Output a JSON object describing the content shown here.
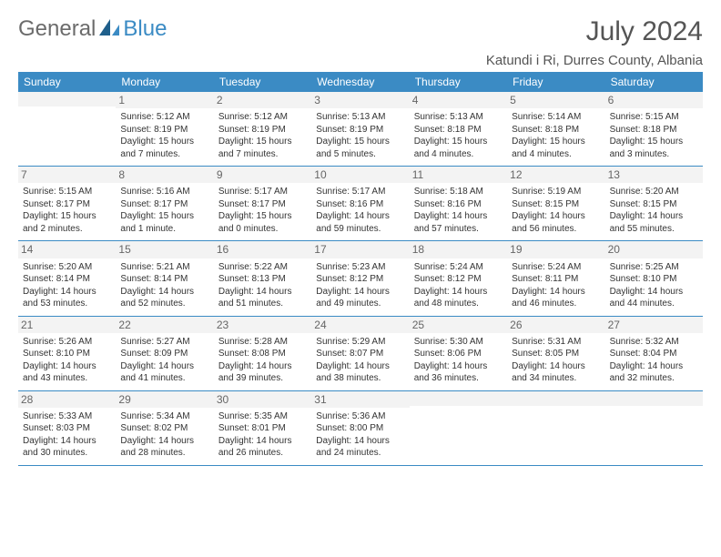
{
  "logo": {
    "general": "General",
    "blue": "Blue"
  },
  "title": "July 2024",
  "location": "Katundi i Ri, Durres County, Albania",
  "weekdays": [
    "Sunday",
    "Monday",
    "Tuesday",
    "Wednesday",
    "Thursday",
    "Friday",
    "Saturday"
  ],
  "colors": {
    "header_bg": "#3b8bc4",
    "header_text": "#ffffff",
    "daynum_bg": "#f3f3f3",
    "text": "#333333"
  },
  "fonts": {
    "title_size": 30,
    "location_size": 15,
    "weekday_size": 12,
    "daynum_size": 12,
    "body_size": 10
  },
  "weeks": [
    [
      null,
      {
        "n": "1",
        "sr": "Sunrise: 5:12 AM",
        "ss": "Sunset: 8:19 PM",
        "d1": "Daylight: 15 hours",
        "d2": "and 7 minutes."
      },
      {
        "n": "2",
        "sr": "Sunrise: 5:12 AM",
        "ss": "Sunset: 8:19 PM",
        "d1": "Daylight: 15 hours",
        "d2": "and 7 minutes."
      },
      {
        "n": "3",
        "sr": "Sunrise: 5:13 AM",
        "ss": "Sunset: 8:19 PM",
        "d1": "Daylight: 15 hours",
        "d2": "and 5 minutes."
      },
      {
        "n": "4",
        "sr": "Sunrise: 5:13 AM",
        "ss": "Sunset: 8:18 PM",
        "d1": "Daylight: 15 hours",
        "d2": "and 4 minutes."
      },
      {
        "n": "5",
        "sr": "Sunrise: 5:14 AM",
        "ss": "Sunset: 8:18 PM",
        "d1": "Daylight: 15 hours",
        "d2": "and 4 minutes."
      },
      {
        "n": "6",
        "sr": "Sunrise: 5:15 AM",
        "ss": "Sunset: 8:18 PM",
        "d1": "Daylight: 15 hours",
        "d2": "and 3 minutes."
      }
    ],
    [
      {
        "n": "7",
        "sr": "Sunrise: 5:15 AM",
        "ss": "Sunset: 8:17 PM",
        "d1": "Daylight: 15 hours",
        "d2": "and 2 minutes."
      },
      {
        "n": "8",
        "sr": "Sunrise: 5:16 AM",
        "ss": "Sunset: 8:17 PM",
        "d1": "Daylight: 15 hours",
        "d2": "and 1 minute."
      },
      {
        "n": "9",
        "sr": "Sunrise: 5:17 AM",
        "ss": "Sunset: 8:17 PM",
        "d1": "Daylight: 15 hours",
        "d2": "and 0 minutes."
      },
      {
        "n": "10",
        "sr": "Sunrise: 5:17 AM",
        "ss": "Sunset: 8:16 PM",
        "d1": "Daylight: 14 hours",
        "d2": "and 59 minutes."
      },
      {
        "n": "11",
        "sr": "Sunrise: 5:18 AM",
        "ss": "Sunset: 8:16 PM",
        "d1": "Daylight: 14 hours",
        "d2": "and 57 minutes."
      },
      {
        "n": "12",
        "sr": "Sunrise: 5:19 AM",
        "ss": "Sunset: 8:15 PM",
        "d1": "Daylight: 14 hours",
        "d2": "and 56 minutes."
      },
      {
        "n": "13",
        "sr": "Sunrise: 5:20 AM",
        "ss": "Sunset: 8:15 PM",
        "d1": "Daylight: 14 hours",
        "d2": "and 55 minutes."
      }
    ],
    [
      {
        "n": "14",
        "sr": "Sunrise: 5:20 AM",
        "ss": "Sunset: 8:14 PM",
        "d1": "Daylight: 14 hours",
        "d2": "and 53 minutes."
      },
      {
        "n": "15",
        "sr": "Sunrise: 5:21 AM",
        "ss": "Sunset: 8:14 PM",
        "d1": "Daylight: 14 hours",
        "d2": "and 52 minutes."
      },
      {
        "n": "16",
        "sr": "Sunrise: 5:22 AM",
        "ss": "Sunset: 8:13 PM",
        "d1": "Daylight: 14 hours",
        "d2": "and 51 minutes."
      },
      {
        "n": "17",
        "sr": "Sunrise: 5:23 AM",
        "ss": "Sunset: 8:12 PM",
        "d1": "Daylight: 14 hours",
        "d2": "and 49 minutes."
      },
      {
        "n": "18",
        "sr": "Sunrise: 5:24 AM",
        "ss": "Sunset: 8:12 PM",
        "d1": "Daylight: 14 hours",
        "d2": "and 48 minutes."
      },
      {
        "n": "19",
        "sr": "Sunrise: 5:24 AM",
        "ss": "Sunset: 8:11 PM",
        "d1": "Daylight: 14 hours",
        "d2": "and 46 minutes."
      },
      {
        "n": "20",
        "sr": "Sunrise: 5:25 AM",
        "ss": "Sunset: 8:10 PM",
        "d1": "Daylight: 14 hours",
        "d2": "and 44 minutes."
      }
    ],
    [
      {
        "n": "21",
        "sr": "Sunrise: 5:26 AM",
        "ss": "Sunset: 8:10 PM",
        "d1": "Daylight: 14 hours",
        "d2": "and 43 minutes."
      },
      {
        "n": "22",
        "sr": "Sunrise: 5:27 AM",
        "ss": "Sunset: 8:09 PM",
        "d1": "Daylight: 14 hours",
        "d2": "and 41 minutes."
      },
      {
        "n": "23",
        "sr": "Sunrise: 5:28 AM",
        "ss": "Sunset: 8:08 PM",
        "d1": "Daylight: 14 hours",
        "d2": "and 39 minutes."
      },
      {
        "n": "24",
        "sr": "Sunrise: 5:29 AM",
        "ss": "Sunset: 8:07 PM",
        "d1": "Daylight: 14 hours",
        "d2": "and 38 minutes."
      },
      {
        "n": "25",
        "sr": "Sunrise: 5:30 AM",
        "ss": "Sunset: 8:06 PM",
        "d1": "Daylight: 14 hours",
        "d2": "and 36 minutes."
      },
      {
        "n": "26",
        "sr": "Sunrise: 5:31 AM",
        "ss": "Sunset: 8:05 PM",
        "d1": "Daylight: 14 hours",
        "d2": "and 34 minutes."
      },
      {
        "n": "27",
        "sr": "Sunrise: 5:32 AM",
        "ss": "Sunset: 8:04 PM",
        "d1": "Daylight: 14 hours",
        "d2": "and 32 minutes."
      }
    ],
    [
      {
        "n": "28",
        "sr": "Sunrise: 5:33 AM",
        "ss": "Sunset: 8:03 PM",
        "d1": "Daylight: 14 hours",
        "d2": "and 30 minutes."
      },
      {
        "n": "29",
        "sr": "Sunrise: 5:34 AM",
        "ss": "Sunset: 8:02 PM",
        "d1": "Daylight: 14 hours",
        "d2": "and 28 minutes."
      },
      {
        "n": "30",
        "sr": "Sunrise: 5:35 AM",
        "ss": "Sunset: 8:01 PM",
        "d1": "Daylight: 14 hours",
        "d2": "and 26 minutes."
      },
      {
        "n": "31",
        "sr": "Sunrise: 5:36 AM",
        "ss": "Sunset: 8:00 PM",
        "d1": "Daylight: 14 hours",
        "d2": "and 24 minutes."
      },
      null,
      null,
      null
    ]
  ]
}
